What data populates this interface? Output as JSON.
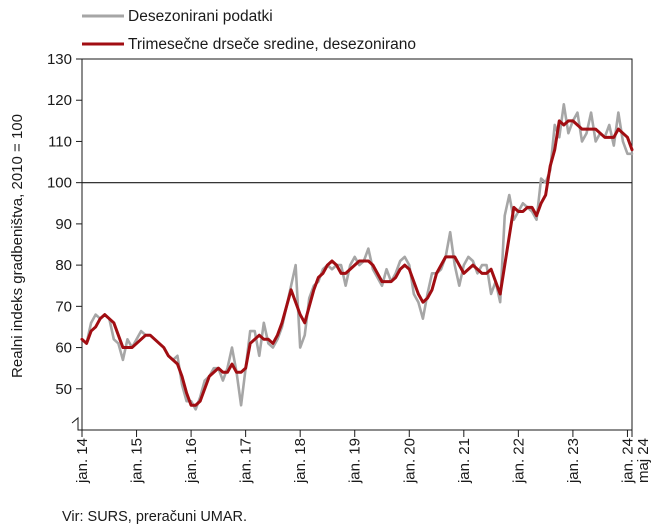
{
  "chart_data": {
    "type": "line",
    "ylabel": "Realni indeks gradbeništva, 2010 = 100",
    "ylim": [
      40,
      130
    ],
    "yticks": [
      50,
      60,
      70,
      80,
      90,
      100,
      110,
      120,
      130
    ],
    "reference_line": 100,
    "x_tick_labels": [
      "jan. 14",
      "jan. 15",
      "jan. 16",
      "jan. 17",
      "jan. 18",
      "jan. 19",
      "jan. 20",
      "jan. 21",
      "jan. 22",
      "jan. 23",
      "jan. 24"
    ],
    "x_last_label": "maj 24",
    "x_start": "2014-01",
    "x_end": "2024-05",
    "legend_position": "top-left",
    "grid": false,
    "series": [
      {
        "name": "Desezonirani podatki",
        "color": "#a6a6a6",
        "values": [
          62,
          61,
          66,
          68,
          67,
          68,
          67,
          62,
          61,
          57,
          62,
          60,
          62,
          64,
          63,
          63,
          62,
          61,
          60,
          58,
          57,
          58,
          51,
          47,
          47,
          45,
          48,
          52,
          53,
          55,
          55,
          52,
          55,
          60,
          54,
          46,
          55,
          64,
          64,
          58,
          66,
          61,
          60,
          62,
          65,
          70,
          75,
          80,
          60,
          63,
          72,
          75,
          76,
          79,
          80,
          79,
          80,
          80,
          75,
          80,
          82,
          80,
          81,
          84,
          79,
          77,
          75,
          79,
          76,
          78,
          81,
          82,
          80,
          73,
          71,
          67,
          73,
          78,
          78,
          79,
          82,
          88,
          80,
          75,
          80,
          82,
          81,
          78,
          80,
          80,
          73,
          76,
          71,
          92,
          97,
          91,
          93,
          95,
          94,
          93,
          91,
          101,
          100,
          103,
          114,
          111,
          119,
          112,
          115,
          117,
          110,
          112,
          117,
          110,
          112,
          111,
          114,
          109,
          117,
          110,
          107,
          107
        ]
      },
      {
        "name": "Trimesečne drseče sredine, desezonirano",
        "color": "#a10d12",
        "values": [
          62,
          61,
          64,
          65,
          67,
          68,
          67,
          66,
          63,
          60,
          60,
          60,
          61,
          62,
          63,
          63,
          62,
          61,
          60,
          58,
          57,
          56,
          53,
          49,
          46,
          46,
          47,
          50,
          53,
          54,
          55,
          54,
          54,
          56,
          54,
          54,
          55,
          61,
          62,
          63,
          62,
          62,
          61,
          63,
          66,
          70,
          74,
          71,
          68,
          66,
          70,
          74,
          77,
          78,
          80,
          81,
          80,
          78,
          78,
          79,
          80,
          81,
          81,
          81,
          80,
          78,
          76,
          76,
          76,
          77,
          79,
          80,
          79,
          76,
          73,
          71,
          72,
          74,
          78,
          80,
          82,
          82,
          82,
          80,
          78,
          79,
          80,
          79,
          78,
          78,
          79,
          76,
          73,
          80,
          87,
          94,
          93,
          93,
          94,
          94,
          92,
          95,
          97,
          104,
          108,
          115,
          114,
          115,
          115,
          114,
          113,
          113,
          113,
          113,
          112,
          111,
          111,
          111,
          113,
          112,
          111,
          108
        ]
      }
    ]
  },
  "source_text": "Vir: SURS, preračuni UMAR."
}
